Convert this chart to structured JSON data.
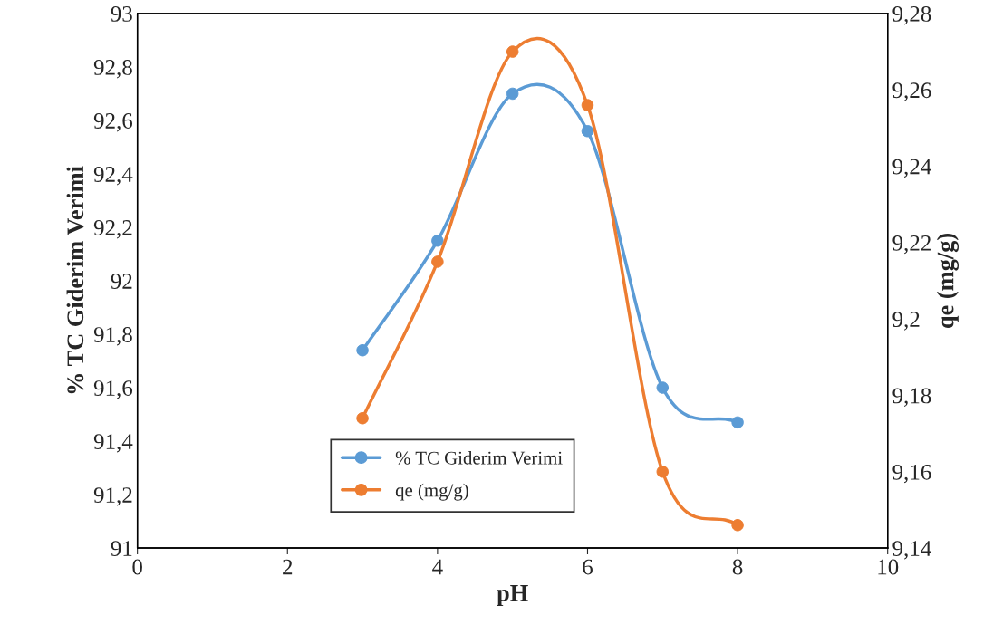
{
  "chart_data": {
    "type": "line",
    "xlabel": "pH",
    "ylabel": "% TC Giderim Verimi",
    "y2label": "qe (mg/g)",
    "x": [
      3,
      4,
      5,
      6,
      7,
      8
    ],
    "series": [
      {
        "name": "% TC Giderim Verimi",
        "color": "#5b9bd5",
        "values": [
          91.74,
          92.15,
          92.7,
          92.56,
          91.6,
          91.47
        ]
      },
      {
        "name": "qe (mg/g)",
        "color": "#ed7d31",
        "axis": "y2",
        "values": [
          9.174,
          9.215,
          9.27,
          9.256,
          9.16,
          9.146
        ]
      }
    ],
    "xlim": [
      0,
      10
    ],
    "xticks": [
      0,
      2,
      4,
      6,
      8,
      10
    ],
    "ylim": [
      91,
      93
    ],
    "yticks": [
      91,
      {
        "value": 91.2,
        "label": "91,2"
      },
      {
        "value": 91.4,
        "label": "91,4"
      },
      {
        "value": 91.6,
        "label": "91,6"
      },
      {
        "value": 91.8,
        "label": "91,8"
      },
      92,
      {
        "value": 92.2,
        "label": "92,2"
      },
      {
        "value": 92.4,
        "label": "92,4"
      },
      {
        "value": 92.6,
        "label": "92,6"
      },
      {
        "value": 92.8,
        "label": "92,8"
      },
      93
    ],
    "y2lim": [
      9.14,
      9.28
    ],
    "y2ticks": [
      {
        "value": 9.14,
        "label": "9,14"
      },
      {
        "value": 9.16,
        "label": "9,16"
      },
      {
        "value": 9.18,
        "label": "9,18"
      },
      {
        "value": 9.2,
        "label": "9,2"
      },
      {
        "value": 9.22,
        "label": "9,22"
      },
      {
        "value": 9.24,
        "label": "9,24"
      },
      {
        "value": 9.26,
        "label": "9,26"
      },
      {
        "value": 9.28,
        "label": "9,28"
      }
    ],
    "marker": "circle",
    "line_style": "solid",
    "grid": false,
    "legend": "bottom"
  }
}
